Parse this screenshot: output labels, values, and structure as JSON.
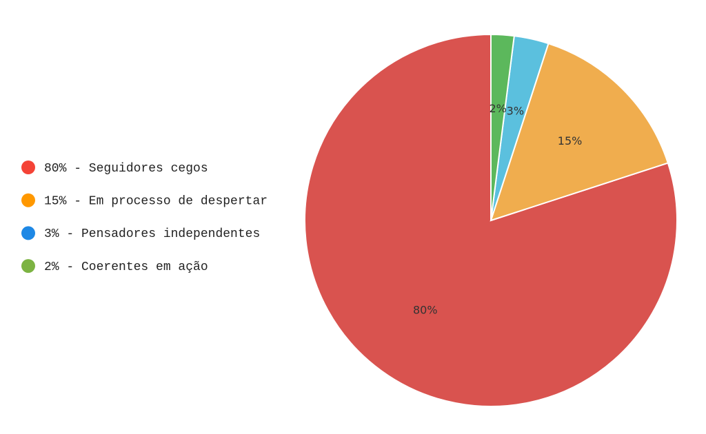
{
  "chart_data": {
    "type": "pie",
    "categories": [
      "80% - Seguidores cegos",
      "15% - Em processo de despertar",
      "3% - Pensadores independentes",
      "2% - Coerentes em ação"
    ],
    "values": [
      80,
      15,
      3,
      2
    ],
    "value_labels": [
      "80%",
      "15%",
      "3%",
      "2%"
    ],
    "colors": [
      "#d9534f",
      "#f0ad4e",
      "#5bc0de",
      "#5cb85c"
    ],
    "legend_marker_colors": [
      "#f44336",
      "#ff9800",
      "#1e88e5",
      "#7cb342"
    ],
    "legend": "left"
  }
}
